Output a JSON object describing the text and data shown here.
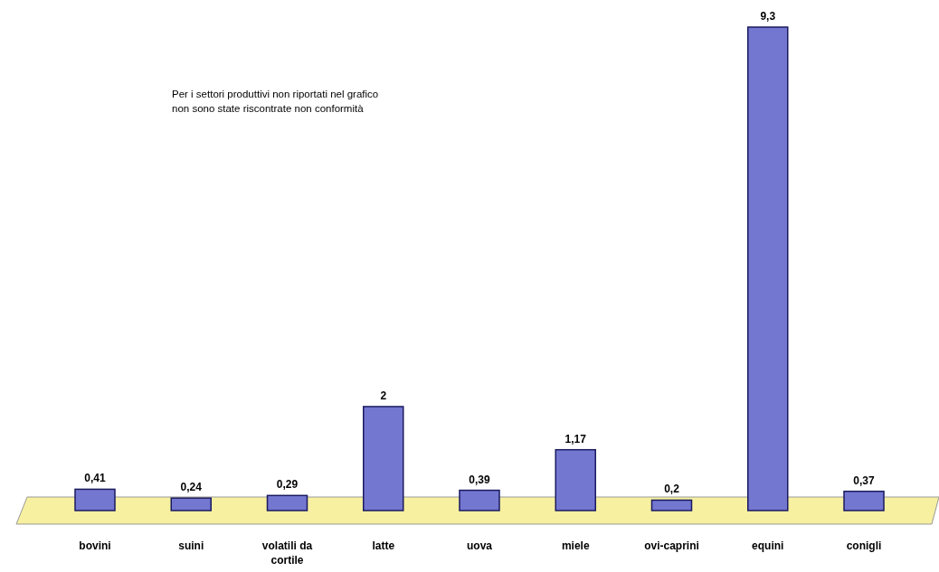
{
  "chart_data": {
    "type": "bar",
    "categories": [
      "bovini",
      "suini",
      "volatili da cortile",
      "latte",
      "uova",
      "miele",
      "ovi-caprini",
      "equini",
      "conigli"
    ],
    "values": [
      0.41,
      0.24,
      0.29,
      2,
      0.39,
      1.17,
      0.2,
      9.3,
      0.37
    ],
    "value_labels": [
      "0,41",
      "0,24",
      "0,29",
      "2",
      "0,39",
      "1,17",
      "0,2",
      "9,3",
      "0,37"
    ],
    "color": "#7477d0",
    "annotations": [
      "Per i settori produttivi non riportati nel grafico\nnon sono state riscontrate non conformità"
    ]
  }
}
